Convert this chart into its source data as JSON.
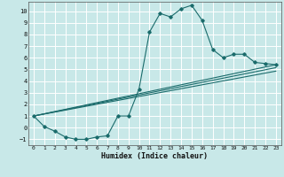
{
  "title": "",
  "xlabel": "Humidex (Indice chaleur)",
  "xlim": [
    -0.5,
    23.5
  ],
  "ylim": [
    -1.5,
    10.8
  ],
  "xticks": [
    0,
    1,
    2,
    3,
    4,
    5,
    6,
    7,
    8,
    9,
    10,
    11,
    12,
    13,
    14,
    15,
    16,
    17,
    18,
    19,
    20,
    21,
    22,
    23
  ],
  "yticks": [
    -1,
    0,
    1,
    2,
    3,
    4,
    5,
    6,
    7,
    8,
    9,
    10
  ],
  "bg_color": "#c8e8e8",
  "line_color": "#1a6b6b",
  "grid_color": "#ffffff",
  "line1_x": [
    0,
    1,
    2,
    3,
    4,
    5,
    6,
    7,
    8,
    9,
    10,
    11,
    12,
    13,
    14,
    15,
    16,
    17,
    18,
    19,
    20,
    21,
    22,
    23
  ],
  "line1_y": [
    1.0,
    0.1,
    -0.3,
    -0.8,
    -1.0,
    -1.0,
    -0.8,
    -0.7,
    1.0,
    1.0,
    3.3,
    8.2,
    9.8,
    9.5,
    10.2,
    10.5,
    9.2,
    6.7,
    6.0,
    6.3,
    6.3,
    5.6,
    5.5,
    5.4
  ],
  "line2_x": [
    0,
    23
  ],
  "line2_y": [
    1.0,
    5.4
  ],
  "line3_x": [
    0,
    23
  ],
  "line3_y": [
    1.0,
    5.15
  ],
  "line4_x": [
    0,
    23
  ],
  "line4_y": [
    1.0,
    4.85
  ]
}
